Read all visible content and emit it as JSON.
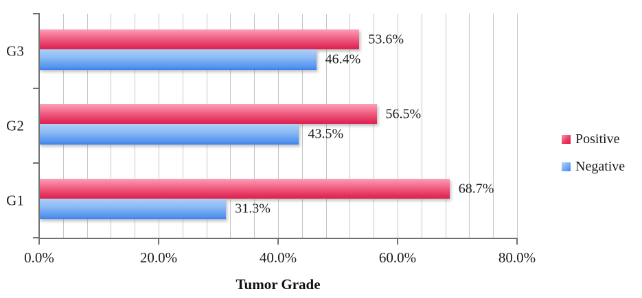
{
  "chart_data": {
    "type": "bar",
    "orientation": "horizontal",
    "title": "",
    "xlabel": "Tumor Grade",
    "categories": [
      "G3",
      "G2",
      "G1"
    ],
    "series": [
      {
        "name": "Positive",
        "color": "#E4305B",
        "values": [
          53.6,
          56.5,
          68.7
        ],
        "data_labels": [
          "53.6%",
          "56.5%",
          "68.7%"
        ]
      },
      {
        "name": "Negative",
        "color": "#4A8EF0",
        "values": [
          46.4,
          43.5,
          31.3
        ],
        "data_labels": [
          "46.4%",
          "43.5%",
          "31.3%"
        ]
      }
    ],
    "xlim": [
      0,
      80
    ],
    "xtick_step": 20,
    "minor_grid_step": 4,
    "xtick_labels": [
      "0.0%",
      "20.0%",
      "40.0%",
      "60.0%",
      "80.0%"
    ],
    "grid": "vertical-minor",
    "legend_position": "right"
  },
  "colors": {
    "background": "#FFFFFF",
    "axis": "#6D7370",
    "gridline": "#C3C7C6",
    "text": "#1A1A1A",
    "positive_gradient_top": "#FB9FB8",
    "positive_gradient_bottom": "#DD244F",
    "negative_gradient_top": "#AECFF7",
    "negative_gradient_bottom": "#3A7DEC"
  }
}
